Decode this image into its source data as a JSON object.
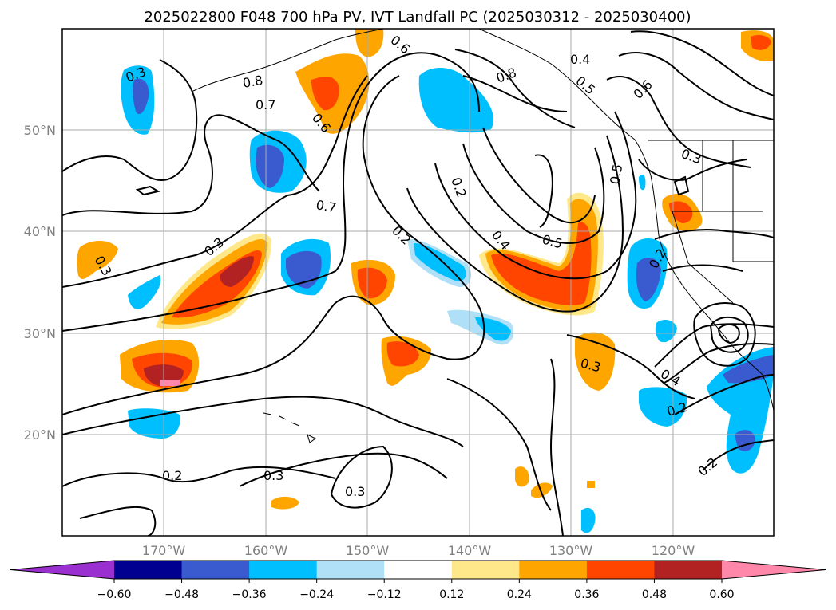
{
  "chart_data": {
    "type": "map",
    "title": "2025022800 F048 700 hPa PV, IVT Landfall PC (2025030312 - 2025030400)",
    "lat_ticks": [
      "50°N",
      "40°N",
      "30°N",
      "20°N"
    ],
    "lon_ticks": [
      "170°W",
      "160°W",
      "150°W",
      "140°W",
      "130°W",
      "120°W"
    ],
    "extent": {
      "lon": [
        -180,
        -110
      ],
      "lat": [
        10,
        60
      ]
    },
    "grid": true,
    "colorbar": {
      "orientation": "horizontal",
      "extend": "both",
      "ticks": [
        "−0.60",
        "−0.48",
        "−0.36",
        "−0.24",
        "−0.12",
        "0.12",
        "0.24",
        "0.36",
        "0.48",
        "0.60"
      ],
      "levels": [
        -0.6,
        -0.48,
        -0.36,
        -0.24,
        -0.12,
        0.12,
        0.24,
        0.36,
        0.48,
        0.6
      ],
      "colors": [
        "#9b30d0",
        "#000090",
        "#3a5bd0",
        "#00bfff",
        "#b0e0f8",
        "#ffffff",
        "#ffe88a",
        "#ffa500",
        "#ff4500",
        "#b22222",
        "#ff88aa"
      ]
    },
    "contour_labels": [
      "0.3",
      "0.8",
      "0.7",
      "0.6",
      "0.6",
      "0.8",
      "0.4",
      "0.5",
      "0.6",
      "0.7",
      "0.3",
      "0.2",
      "0.4",
      "0.5",
      "0.5",
      "0.3",
      "0.3",
      "0.2",
      "0.3",
      "0.4",
      "0.2",
      "0.2",
      "0.2",
      "0.3",
      "0.3",
      "0.2"
    ]
  }
}
